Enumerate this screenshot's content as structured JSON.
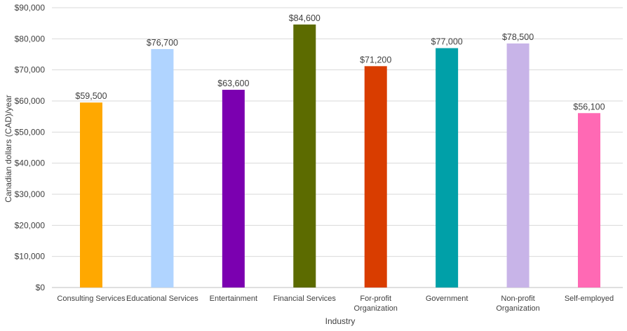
{
  "chart_data": {
    "type": "bar",
    "title": "",
    "xlabel": "Industry",
    "ylabel": "Canadian dollars (CAD)/year",
    "ylim": [
      0,
      90000
    ],
    "ytick_step": 10000,
    "grid": true,
    "legend": "none",
    "categories": [
      [
        "Consulting Services"
      ],
      [
        "Educational Services"
      ],
      [
        "Entertainment"
      ],
      [
        "Financial Services"
      ],
      [
        "For-profit",
        "Organization"
      ],
      [
        "Government"
      ],
      [
        "Non-profit",
        "Organization"
      ],
      [
        "Self-employed"
      ]
    ],
    "values": [
      59500,
      76700,
      63600,
      84600,
      71200,
      77000,
      78500,
      56100
    ],
    "value_labels": [
      "$59,500",
      "$76,700",
      "$63,600",
      "$84,600",
      "$71,200",
      "$77,000",
      "$78,500",
      "$56,100"
    ],
    "ytick_labels": [
      "$0",
      "$10,000",
      "$20,000",
      "$30,000",
      "$40,000",
      "$50,000",
      "$60,000",
      "$70,000",
      "$80,000",
      "$90,000"
    ],
    "colors": [
      "#FFA800",
      "#B0D4FF",
      "#7B00B0",
      "#5C6B00",
      "#D93D00",
      "#00A0A8",
      "#C8B4E8",
      "#FF69B4"
    ]
  }
}
